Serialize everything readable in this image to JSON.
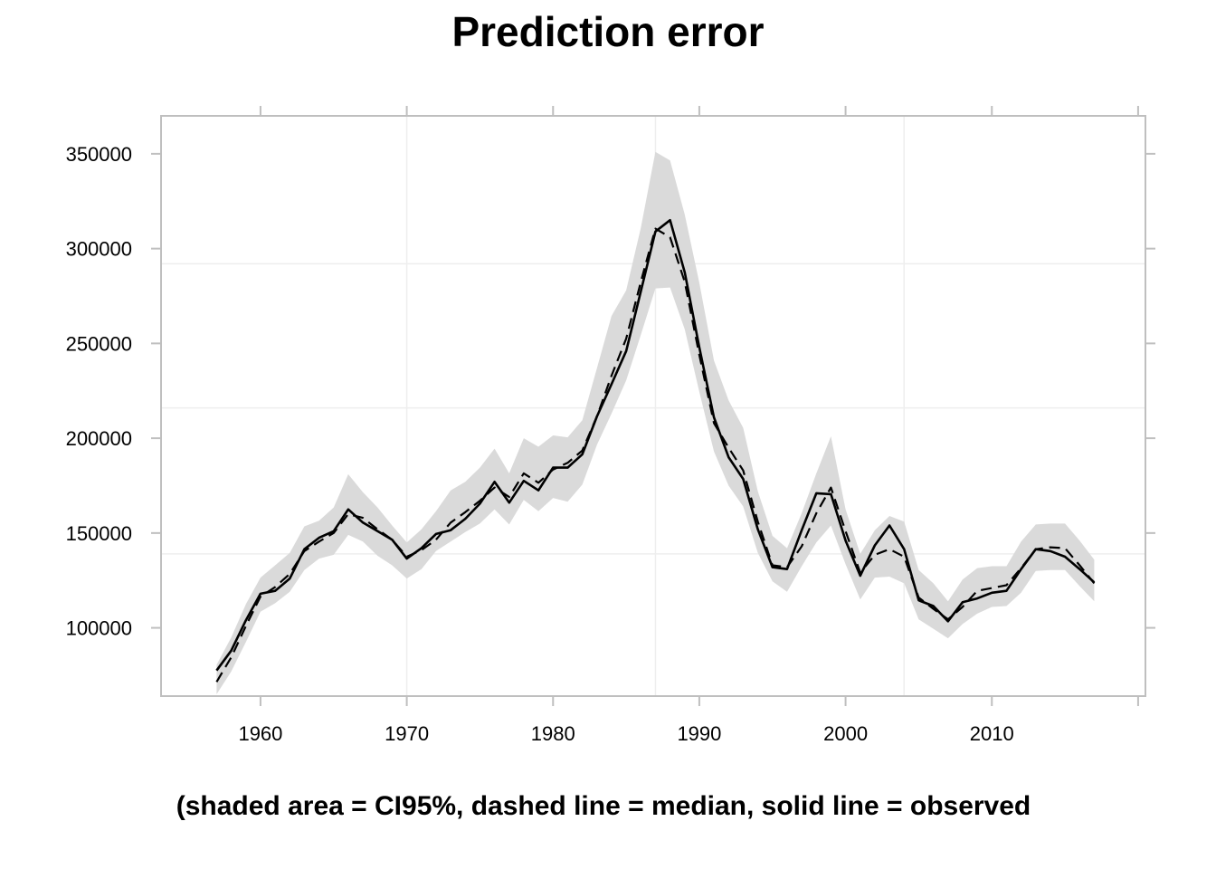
{
  "chart_data": {
    "type": "line",
    "title": "Prediction error",
    "subtitle": "(shaded area = CI95%, dashed line = median, solid line = observed",
    "xlabel": "",
    "ylabel": "",
    "xlim": [
      1953.2,
      2020.5
    ],
    "ylim": [
      64000,
      370000
    ],
    "x_ticks": [
      1960,
      1970,
      1980,
      1990,
      2000,
      2010
    ],
    "x_tick_labels": [
      "1960",
      "1970",
      "1980",
      "1990",
      "2000",
      "2010"
    ],
    "y_ticks": [
      100000,
      150000,
      200000,
      250000,
      300000,
      350000
    ],
    "y_tick_labels": [
      "100000",
      "150000",
      "200000",
      "250000",
      "300000",
      "350000"
    ],
    "colors": {
      "band": "#dadada",
      "line": "#000000",
      "grid": "#eeeeee",
      "frame": "#bfbfbf"
    },
    "x": [
      1957,
      1958,
      1959,
      1960,
      1961,
      1962,
      1963,
      1964,
      1965,
      1966,
      1967,
      1968,
      1969,
      1970,
      1971,
      1972,
      1973,
      1974,
      1975,
      1976,
      1977,
      1978,
      1979,
      1980,
      1981,
      1982,
      1983,
      1984,
      1985,
      1986,
      1987,
      1988,
      1989,
      1990,
      1991,
      1992,
      1993,
      1994,
      1995,
      1996,
      1997,
      1998,
      1999,
      2000,
      2001,
      2002,
      2003,
      2004,
      2005,
      2006,
      2007,
      2008,
      2009,
      2010,
      2011,
      2012,
      2013,
      2014,
      2015,
      2016,
      2017
    ],
    "series": [
      {
        "name": "observed",
        "style": "solid",
        "values": [
          77500,
          88000,
          104000,
          118000,
          119500,
          126000,
          141500,
          147500,
          151000,
          162500,
          155500,
          151000,
          146500,
          136500,
          142000,
          149500,
          151500,
          157500,
          165500,
          177000,
          166000,
          177500,
          172500,
          184500,
          184500,
          191500,
          211500,
          228500,
          246000,
          277500,
          309000,
          315000,
          287500,
          248000,
          211000,
          190000,
          178500,
          152000,
          132000,
          131000,
          151500,
          171000,
          170500,
          146000,
          127500,
          143500,
          154000,
          141500,
          114500,
          111500,
          103500,
          113500,
          115500,
          118500,
          119500,
          131000,
          141500,
          140500,
          137500,
          131000,
          124000
        ]
      },
      {
        "name": "median",
        "style": "dashed",
        "values": [
          71500,
          84500,
          101000,
          116500,
          121500,
          128500,
          140500,
          145500,
          150000,
          160000,
          158000,
          152000,
          146500,
          137500,
          141000,
          146500,
          155500,
          161000,
          167000,
          174000,
          169000,
          181500,
          176500,
          183500,
          187000,
          193500,
          211500,
          233000,
          252500,
          282500,
          310500,
          306000,
          282500,
          244000,
          208000,
          195000,
          183000,
          156000,
          133000,
          132000,
          143000,
          160500,
          174000,
          151000,
          129000,
          138500,
          141500,
          137500,
          116000,
          110000,
          104500,
          111000,
          119500,
          121000,
          122500,
          131500,
          141500,
          142500,
          142000,
          133000,
          123500
        ]
      },
      {
        "name": "CI95 upper",
        "style": "band-upper",
        "values": [
          80500,
          95000,
          112500,
          126500,
          133000,
          139500,
          153500,
          156500,
          163500,
          181000,
          171500,
          163500,
          154000,
          145000,
          152000,
          161500,
          172500,
          177000,
          184500,
          194500,
          181500,
          200000,
          195500,
          201500,
          200500,
          209500,
          237000,
          264500,
          278000,
          311000,
          351000,
          346500,
          318000,
          282000,
          241000,
          220000,
          205500,
          172000,
          148500,
          142000,
          160500,
          181500,
          201000,
          162500,
          139000,
          151500,
          159000,
          156000,
          130500,
          123500,
          114000,
          125500,
          131500,
          132500,
          132500,
          145500,
          154500,
          155000,
          155000,
          146000,
          136000
        ]
      },
      {
        "name": "CI95 lower",
        "style": "band-lower",
        "values": [
          65000,
          77000,
          92500,
          108500,
          113000,
          119000,
          130500,
          136500,
          138500,
          149000,
          145500,
          138000,
          133000,
          126000,
          131000,
          140500,
          145500,
          150500,
          155000,
          162500,
          154500,
          167500,
          161500,
          168500,
          166500,
          175500,
          196500,
          213000,
          230500,
          254500,
          279000,
          279500,
          257500,
          224500,
          193000,
          175000,
          164000,
          139500,
          124500,
          119000,
          132500,
          145000,
          154000,
          133500,
          115000,
          126500,
          127000,
          123500,
          104500,
          99500,
          94500,
          102000,
          107500,
          111000,
          111500,
          118500,
          130000,
          130500,
          130500,
          122000,
          114000
        ]
      }
    ]
  }
}
